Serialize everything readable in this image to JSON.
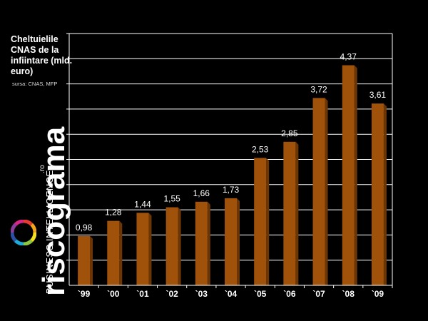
{
  "chart_data": {
    "type": "bar",
    "title": "Cheltuielile CNAS de la infiintare (mld. euro)",
    "source": "sursa: CNAS, MFP",
    "categories": [
      "`99",
      "`00",
      "`01",
      "`02",
      "`03",
      "`04",
      "`05",
      "`06",
      "`07",
      "`08",
      "`09"
    ],
    "values": [
      0.98,
      1.28,
      1.44,
      1.55,
      1.66,
      1.73,
      2.53,
      2.85,
      3.72,
      4.37,
      3.61
    ],
    "value_labels": [
      "0,98",
      "1,28",
      "1,44",
      "1,55",
      "1,66",
      "1,73",
      "2,53",
      "2,85",
      "3,72",
      "4,37",
      "3,61"
    ],
    "ylim": [
      0,
      5
    ],
    "grid": true,
    "bar_color": "#A0520A",
    "bar_shade_color": "#6B3505",
    "background": "#000000"
  },
  "brand": {
    "name": "riscograma",
    "tld": ".ro",
    "tagline": "BUSINESS INTELLIGENCE",
    "ring_colors": [
      "#E63B2E",
      "#F3A51C",
      "#F7E01E",
      "#8DC63F",
      "#1FA9D6",
      "#2C4FA3",
      "#8A3E9C",
      "#D6268A"
    ]
  }
}
